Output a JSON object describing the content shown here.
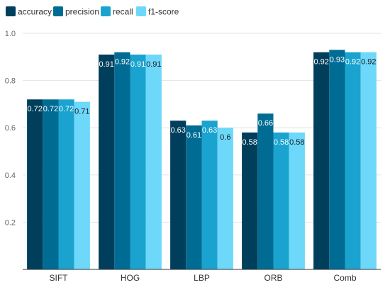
{
  "chart_data": {
    "type": "bar",
    "title": "",
    "xlabel": "",
    "ylabel": "",
    "categories": [
      "SIFT",
      "HOG",
      "LBP",
      "ORB",
      "Comb"
    ],
    "ylim": [
      0,
      1.0
    ],
    "yticks": [
      "0.2",
      "0.4",
      "0.6",
      "0.8",
      "1.0"
    ],
    "grid": true,
    "legend_position": "top-left",
    "series": [
      {
        "name": "accuracy",
        "color": "#003f5c",
        "values": [
          0.72,
          0.91,
          0.63,
          0.58,
          0.92
        ],
        "labels": [
          "0.72",
          "0.91",
          "0.63",
          "0.58",
          "0.92"
        ]
      },
      {
        "name": "precision",
        "color": "#006c94",
        "values": [
          0.72,
          0.92,
          0.61,
          0.66,
          0.93
        ],
        "labels": [
          "0.72",
          "0.92",
          "0.61",
          "0.66",
          "0.93"
        ]
      },
      {
        "name": "recall",
        "color": "#1ba3cf",
        "values": [
          0.72,
          0.91,
          0.63,
          0.58,
          0.92
        ],
        "labels": [
          "0.72",
          "0.91",
          "0.63",
          "0.58",
          "0.92"
        ]
      },
      {
        "name": "f1-score",
        "color": "#6dd8fa",
        "values": [
          0.71,
          0.91,
          0.6,
          0.58,
          0.92
        ],
        "labels": [
          "0.71",
          "0.91",
          "0.6",
          "0.58",
          "0.92"
        ]
      }
    ]
  }
}
